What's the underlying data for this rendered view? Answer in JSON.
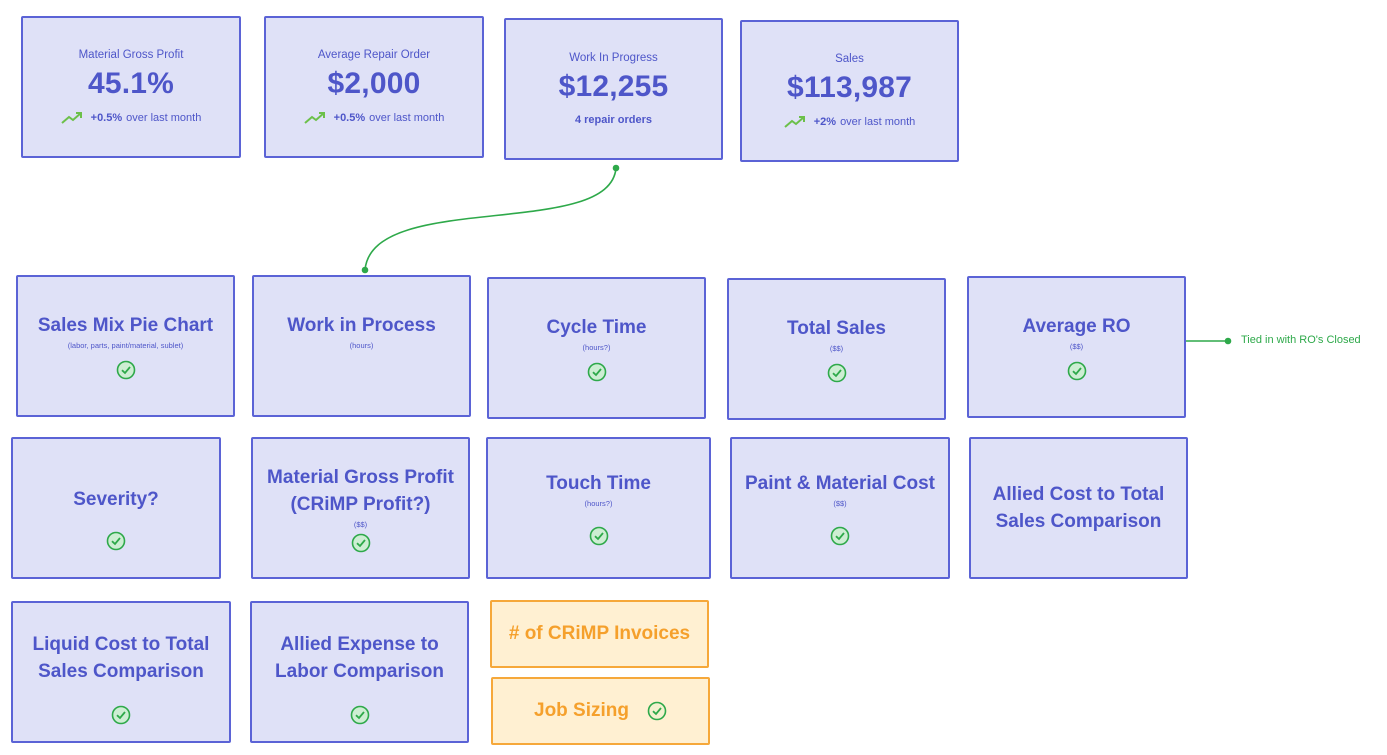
{
  "kpis": {
    "material_gross_profit": {
      "label": "Material Gross Profit",
      "value": "45.1%",
      "change": "+0.5%",
      "suffix": "over last month"
    },
    "average_repair_order": {
      "label": "Average Repair Order",
      "value": "$2,000",
      "change": "+0.5%",
      "suffix": "over last month"
    },
    "work_in_progress": {
      "label": "Work In Progress",
      "value": "$12,255",
      "sub": "4 repair orders"
    },
    "sales": {
      "label": "Sales",
      "value": "$113,987",
      "change": "+2%",
      "suffix": "over last month"
    }
  },
  "tiles": {
    "sales_mix": {
      "title": "Sales Mix Pie Chart",
      "unit": "(labor, parts, paint/material, sublet)",
      "done": true
    },
    "work_in_process": {
      "title": "Work in Process",
      "unit": "(hours)",
      "done": false
    },
    "cycle_time": {
      "title": "Cycle Time",
      "unit": "(hours?)",
      "done": true
    },
    "total_sales": {
      "title": "Total Sales",
      "unit": "($$)",
      "done": true
    },
    "average_ro": {
      "title": "Average RO",
      "unit": "($$)",
      "done": true
    },
    "severity": {
      "title": "Severity?",
      "done": true
    },
    "material_gp_crimp": {
      "title": "Material Gross Profit (CRiMP Profit?)",
      "title_line1": "Material Gross Profit",
      "title_line2": "(CRiMP Profit?)",
      "unit": "($$)",
      "done": true
    },
    "touch_time": {
      "title": "Touch Time",
      "unit": "(hours?)",
      "done": true
    },
    "paint_material_cost": {
      "title": "Paint & Material Cost",
      "unit": "($$)",
      "done": true
    },
    "allied_cost": {
      "title": "Allied Cost to Total Sales Comparison",
      "title_line1": "Allied Cost to Total",
      "title_line2": "Sales Comparison",
      "done": false
    },
    "liquid_cost": {
      "title": "Liquid Cost to Total Sales Comparison",
      "title_line1": "Liquid Cost to Total",
      "title_line2": "Sales Comparison",
      "done": true
    },
    "allied_expense": {
      "title": "Allied Expense to Labor Comparison",
      "title_line1": "Allied Expense to",
      "title_line2": "Labor Comparison",
      "done": true
    }
  },
  "pending": {
    "crimp_invoices": {
      "title": "# of CRiMP Invoices",
      "done": false
    },
    "job_sizing": {
      "title": "Job Sizing",
      "done": true
    }
  },
  "annotation": {
    "text": "Tied in with RO's Closed"
  },
  "colors": {
    "card_fill": "#dfe1f7",
    "card_border": "#5b63d6",
    "text": "#4e56c9",
    "accent_green": "#2ea94a",
    "pending_fill": "#fff0d2",
    "pending_border": "#f6a83a",
    "pending_text": "#f5a02c"
  },
  "icons": [
    "trend-up-icon",
    "check-circle-icon"
  ]
}
